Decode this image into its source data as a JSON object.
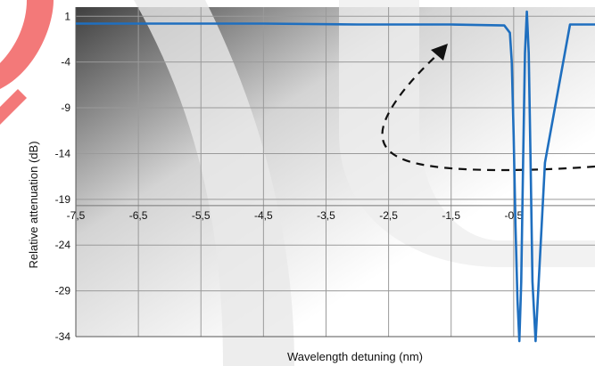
{
  "chart_data": {
    "type": "line",
    "title": "",
    "xlabel": "Wavelength detuning (nm)",
    "ylabel": "Relative attenuation (dB)",
    "xlim": [
      -7.5,
      0.8
    ],
    "ylim": [
      -34,
      2
    ],
    "x_ticks": [
      "-7,5",
      "-6,5",
      "-5,5",
      "-4,5",
      "-3,5",
      "-2,5",
      "-1,5",
      "-0,5"
    ],
    "y_ticks": [
      "1",
      "-4",
      "-9",
      "-14",
      "-19",
      "-24",
      "-29",
      "-34"
    ],
    "grid": true,
    "legend": "none",
    "series": [
      {
        "color": "#1f6fbf",
        "x": [
          -7.5,
          -6.0,
          -4.5,
          -3.0,
          -1.5,
          -0.65,
          -0.56,
          -0.53,
          -0.5,
          -0.47,
          -0.44,
          -0.41,
          -0.38,
          -0.35,
          -0.32,
          -0.29,
          -0.26,
          -0.23,
          -0.2,
          -0.15,
          0.0,
          0.4,
          0.8
        ],
        "y": [
          0.2,
          0.2,
          0.2,
          0.1,
          0.1,
          0.0,
          -0.8,
          -4,
          -12,
          -22,
          -30,
          -34.5,
          -28,
          -15,
          -3,
          1.5,
          -3,
          -15,
          -28,
          -34.5,
          -15,
          0.1,
          0.1
        ]
      }
    ],
    "annotations": [
      {
        "type": "dashed-curved-arrow",
        "color": "#111111"
      }
    ],
    "colors": {
      "series": "#1f6fbf",
      "grid": "#9a9a9a",
      "arrow": "#111111"
    }
  }
}
